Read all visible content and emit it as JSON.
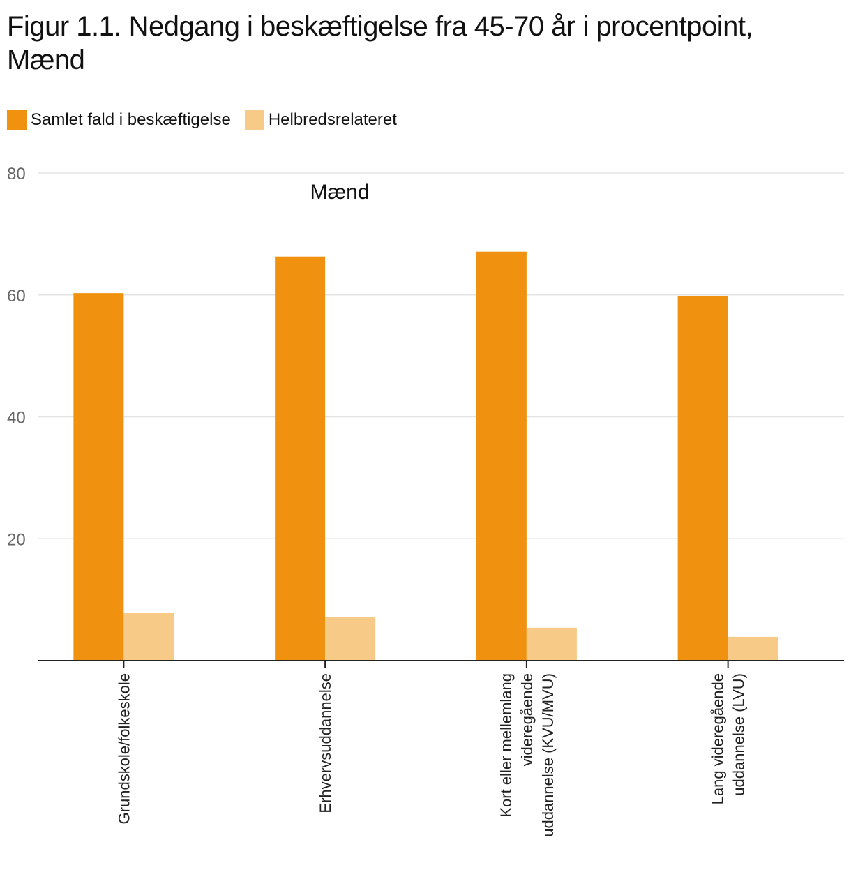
{
  "title_lines": [
    "Figur 1.1. Nedgang i beskæftigelse fra 45-70 år i procentpoint,",
    "Mænd"
  ],
  "colors": {
    "series1": "#f0920f",
    "series2": "#f8ca87",
    "grid": "#e3e3e3",
    "axis": "#222222"
  },
  "chart_data": {
    "type": "bar",
    "title": "Figur 1.1. Nedgang i beskæftigelse fra 45-70 år i procentpoint, Mænd",
    "panel_label": "Mænd",
    "categories": [
      "Grundskole/folkeskole",
      "Erhvervsuddannelse",
      "Kort eller mellemlang videregående uddannelse (KVU/MVU)",
      "Lang videregående uddannelse (LVU)"
    ],
    "category_label_lines": [
      [
        "Grundskole/folkeskole"
      ],
      [
        "Erhvervsuddannelse"
      ],
      [
        "Kort eller mellemlang",
        "videregående",
        "uddannelse (KVU/MVU)"
      ],
      [
        "Lang videregående",
        "uddannelse (LVU)"
      ]
    ],
    "series": [
      {
        "name": "Samlet fald i beskæftigelse",
        "values": [
          60.3,
          66.3,
          67.1,
          59.8
        ]
      },
      {
        "name": "Helbredsrelateret",
        "values": [
          7.9,
          7.2,
          5.4,
          3.9
        ]
      }
    ],
    "ylim": [
      0,
      80
    ],
    "yticks": [
      20,
      40,
      60,
      80
    ],
    "grid": true,
    "legend_position": "top-left",
    "xlabel": "",
    "ylabel": ""
  }
}
